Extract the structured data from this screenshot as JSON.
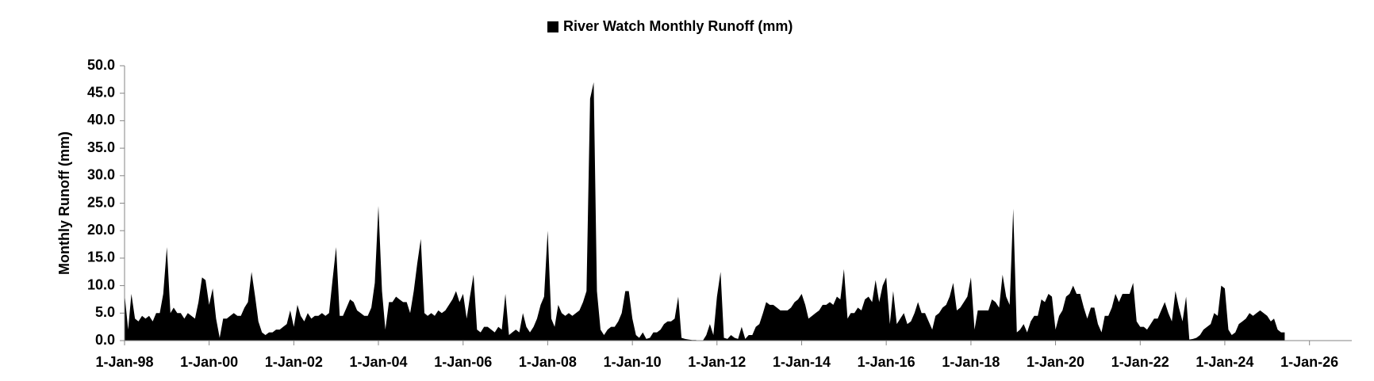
{
  "chart_data": {
    "type": "area",
    "y_label": "Monthly Runoff (mm)",
    "legend": "top",
    "x": [
      "1998-01-01",
      "1998-02-01",
      "1998-03-01",
      "1998-04-01",
      "1998-05-01",
      "1998-06-01",
      "1998-07-01",
      "1998-08-01",
      "1998-09-01",
      "1998-10-01",
      "1998-11-01",
      "1998-12-01",
      "1999-01-01",
      "1999-02-01",
      "1999-03-01",
      "1999-04-01",
      "1999-05-01",
      "1999-06-01",
      "1999-07-01",
      "1999-08-01",
      "1999-09-01",
      "1999-10-01",
      "1999-11-01",
      "1999-12-01",
      "2000-01-01",
      "2000-02-01",
      "2000-03-01",
      "2000-04-01",
      "2000-05-01",
      "2000-06-01",
      "2000-07-01",
      "2000-08-01",
      "2000-09-01",
      "2000-10-01",
      "2000-11-01",
      "2000-12-01",
      "2001-01-01",
      "2001-02-01",
      "2001-03-01",
      "2001-04-01",
      "2001-05-01",
      "2001-06-01",
      "2001-07-01",
      "2001-08-01",
      "2001-09-01",
      "2001-10-01",
      "2001-11-01",
      "2001-12-01",
      "2002-01-01",
      "2002-02-01",
      "2002-03-01",
      "2002-04-01",
      "2002-05-01",
      "2002-06-01",
      "2002-07-01",
      "2002-08-01",
      "2002-09-01",
      "2002-10-01",
      "2002-11-01",
      "2002-12-01",
      "2003-01-01",
      "2003-02-01",
      "2003-03-01",
      "2003-04-01",
      "2003-05-01",
      "2003-06-01",
      "2003-07-01",
      "2003-08-01",
      "2003-09-01",
      "2003-10-01",
      "2003-11-01",
      "2003-12-01",
      "2004-01-01",
      "2004-02-01",
      "2004-03-01",
      "2004-04-01",
      "2004-05-01",
      "2004-06-01",
      "2004-07-01",
      "2004-08-01",
      "2004-09-01",
      "2004-10-01",
      "2004-11-01",
      "2004-12-01",
      "2005-01-01",
      "2005-02-01",
      "2005-03-01",
      "2005-04-01",
      "2005-05-01",
      "2005-06-01",
      "2005-07-01",
      "2005-08-01",
      "2005-09-01",
      "2005-10-01",
      "2005-11-01",
      "2005-12-01",
      "2006-01-01",
      "2006-02-01",
      "2006-03-01",
      "2006-04-01",
      "2006-05-01",
      "2006-06-01",
      "2006-07-01",
      "2006-08-01",
      "2006-09-01",
      "2006-10-01",
      "2006-11-01",
      "2006-12-01",
      "2007-01-01",
      "2007-02-01",
      "2007-03-01",
      "2007-04-01",
      "2007-05-01",
      "2007-06-01",
      "2007-07-01",
      "2007-08-01",
      "2007-09-01",
      "2007-10-01",
      "2007-11-01",
      "2007-12-01",
      "2008-01-01",
      "2008-02-01",
      "2008-03-01",
      "2008-04-01",
      "2008-05-01",
      "2008-06-01",
      "2008-07-01",
      "2008-08-01",
      "2008-09-01",
      "2008-10-01",
      "2008-11-01",
      "2008-12-01",
      "2009-01-01",
      "2009-02-01",
      "2009-03-01",
      "2009-04-01",
      "2009-05-01",
      "2009-06-01",
      "2009-07-01",
      "2009-08-01",
      "2009-09-01",
      "2009-10-01",
      "2009-11-01",
      "2009-12-01",
      "2010-01-01",
      "2010-02-01",
      "2010-03-01",
      "2010-04-01",
      "2010-05-01",
      "2010-06-01",
      "2010-07-01",
      "2010-08-01",
      "2010-09-01",
      "2010-10-01",
      "2010-11-01",
      "2010-12-01",
      "2011-01-01",
      "2011-02-01",
      "2011-03-01",
      "2011-04-01",
      "2011-05-01",
      "2011-06-01",
      "2011-07-01",
      "2011-08-01",
      "2011-09-01",
      "2011-10-01",
      "2011-11-01",
      "2011-12-01",
      "2012-01-01",
      "2012-02-01",
      "2012-03-01",
      "2012-04-01",
      "2012-05-01",
      "2012-06-01",
      "2012-07-01",
      "2012-08-01",
      "2012-09-01",
      "2012-10-01",
      "2012-11-01",
      "2012-12-01",
      "2013-01-01",
      "2013-02-01",
      "2013-03-01",
      "2013-04-01",
      "2013-05-01",
      "2013-06-01",
      "2013-07-01",
      "2013-08-01",
      "2013-09-01",
      "2013-10-01",
      "2013-11-01",
      "2013-12-01",
      "2014-01-01",
      "2014-02-01",
      "2014-03-01",
      "2014-04-01",
      "2014-05-01",
      "2014-06-01",
      "2014-07-01",
      "2014-08-01",
      "2014-09-01",
      "2014-10-01",
      "2014-11-01",
      "2014-12-01",
      "2015-01-01",
      "2015-02-01",
      "2015-03-01",
      "2015-04-01",
      "2015-05-01",
      "2015-06-01",
      "2015-07-01",
      "2015-08-01",
      "2015-09-01",
      "2015-10-01",
      "2015-11-01",
      "2015-12-01",
      "2016-01-01",
      "2016-02-01",
      "2016-03-01",
      "2016-04-01",
      "2016-05-01",
      "2016-06-01",
      "2016-07-01",
      "2016-08-01",
      "2016-09-01",
      "2016-10-01",
      "2016-11-01",
      "2016-12-01",
      "2017-01-01",
      "2017-02-01",
      "2017-03-01",
      "2017-04-01",
      "2017-05-01",
      "2017-06-01",
      "2017-07-01",
      "2017-08-01",
      "2017-09-01",
      "2017-10-01",
      "2017-11-01",
      "2017-12-01",
      "2018-01-01",
      "2018-02-01",
      "2018-03-01",
      "2018-04-01",
      "2018-05-01",
      "2018-06-01",
      "2018-07-01",
      "2018-08-01",
      "2018-09-01",
      "2018-10-01",
      "2018-11-01",
      "2018-12-01",
      "2019-01-01",
      "2019-02-01",
      "2019-03-01",
      "2019-04-01",
      "2019-05-01",
      "2019-06-01",
      "2019-07-01",
      "2019-08-01",
      "2019-09-01",
      "2019-10-01",
      "2019-11-01",
      "2019-12-01",
      "2020-01-01",
      "2020-02-01",
      "2020-03-01",
      "2020-04-01",
      "2020-05-01",
      "2020-06-01",
      "2020-07-01",
      "2020-08-01",
      "2020-09-01",
      "2020-10-01",
      "2020-11-01",
      "2020-12-01",
      "2021-01-01",
      "2021-02-01",
      "2021-03-01",
      "2021-04-01",
      "2021-05-01",
      "2021-06-01",
      "2021-07-01",
      "2021-08-01",
      "2021-09-01",
      "2021-10-01",
      "2021-11-01",
      "2021-12-01",
      "2022-01-01",
      "2022-02-01",
      "2022-03-01",
      "2022-04-01",
      "2022-05-01",
      "2022-06-01",
      "2022-07-01",
      "2022-08-01",
      "2022-09-01",
      "2022-10-01",
      "2022-11-01",
      "2022-12-01",
      "2023-01-01",
      "2023-02-01",
      "2023-03-01",
      "2023-04-01",
      "2023-05-01",
      "2023-06-01",
      "2023-07-01",
      "2023-08-01",
      "2023-09-01",
      "2023-10-01",
      "2023-11-01",
      "2023-12-01",
      "2024-01-01",
      "2024-02-01",
      "2024-03-01",
      "2024-04-01",
      "2024-05-01",
      "2024-06-01",
      "2024-07-01",
      "2024-08-01",
      "2024-09-01",
      "2024-10-01",
      "2024-11-01",
      "2024-12-01",
      "2025-01-01",
      "2025-02-01",
      "2025-03-01",
      "2025-04-01",
      "2025-05-01",
      "2025-06-01"
    ],
    "series": [
      {
        "name": "River Watch Monthly Runoff (mm)",
        "color": "#000000",
        "values": [
          8.5,
          2,
          8.5,
          4,
          3.5,
          4.5,
          4,
          4.5,
          3.5,
          5,
          5,
          8.5,
          17,
          5,
          6,
          5,
          5,
          4,
          5,
          4.5,
          4,
          7,
          11.5,
          11,
          6.5,
          9.5,
          4,
          0.5,
          4,
          4,
          4.5,
          5,
          4.5,
          4.5,
          6,
          7,
          12.5,
          8,
          3.5,
          1.5,
          1,
          1.5,
          1.5,
          2,
          2,
          2.5,
          3,
          5.5,
          2.5,
          6.5,
          4.5,
          3.5,
          5,
          4,
          4.5,
          4.5,
          5,
          4.5,
          5,
          11,
          17,
          4.5,
          4.5,
          6,
          7.5,
          7,
          5.5,
          5,
          4.5,
          4.5,
          6,
          10.5,
          24.5,
          9,
          2,
          7,
          7,
          8,
          7.5,
          7,
          7,
          5,
          9,
          14,
          18.5,
          5,
          4.5,
          5,
          4.5,
          5.5,
          5,
          5.5,
          6.5,
          7.5,
          9,
          7,
          8.5,
          4,
          8,
          12,
          2,
          1.5,
          2.5,
          2.5,
          2,
          1.5,
          2.5,
          2,
          8.5,
          1,
          1.5,
          2,
          1.5,
          5,
          2.5,
          1.5,
          2.5,
          4,
          6.5,
          8,
          20,
          4,
          2.5,
          6.5,
          5,
          4.5,
          5,
          4.5,
          5,
          5.5,
          7,
          9,
          44,
          47,
          9,
          2,
          1,
          2,
          2.5,
          2.5,
          3.5,
          5,
          9,
          9,
          4,
          1,
          0.5,
          1.5,
          0.3,
          0.5,
          1.5,
          1.5,
          2,
          3,
          3.5,
          3.5,
          4,
          8,
          0.5,
          0.3,
          0.2,
          0.1,
          0.1,
          0,
          0,
          1,
          3,
          1,
          8,
          12.5,
          0.5,
          0.3,
          1,
          0.5,
          0.3,
          2.5,
          0.3,
          1,
          1,
          2.5,
          3,
          5,
          7,
          6.5,
          6.5,
          6,
          5.5,
          5.5,
          5.5,
          6,
          7,
          7.5,
          8.5,
          6.5,
          4,
          4.5,
          5,
          5.5,
          6.5,
          6.5,
          7,
          6.5,
          8,
          7.5,
          13,
          4,
          5,
          5,
          6,
          5.5,
          7.5,
          8,
          7,
          11,
          7,
          10,
          11.5,
          3,
          9,
          3,
          4,
          5,
          3,
          3.5,
          5,
          7,
          5,
          5,
          3.5,
          2,
          4.5,
          5,
          6,
          6.5,
          8,
          10.5,
          5.5,
          6,
          7,
          8,
          11.5,
          2,
          5.5,
          5.5,
          5.5,
          5.5,
          7.5,
          7,
          6,
          12,
          8,
          6.5,
          24,
          1.5,
          2,
          3,
          1.5,
          3.5,
          4.5,
          4.5,
          7.5,
          7,
          8.5,
          8,
          2,
          4.5,
          5.5,
          8,
          8.5,
          10,
          8.5,
          8.5,
          6,
          4,
          6,
          6,
          3,
          1.5,
          4.5,
          4.5,
          6,
          8.5,
          7,
          8.5,
          8.5,
          8.5,
          10.5,
          3.5,
          2.5,
          2.5,
          2,
          3,
          4,
          4,
          5.5,
          7,
          5,
          3.5,
          9,
          6,
          3.5,
          8,
          0.2,
          0.3,
          0.5,
          1,
          2,
          2.5,
          3,
          5,
          4.5,
          10,
          9.5,
          2,
          1,
          1.5,
          3,
          3.5,
          4,
          5,
          4.5,
          5,
          5.5,
          5,
          4.5,
          3.5,
          4,
          2,
          1.5,
          1.5
        ]
      }
    ],
    "xlim": [
      "1998-01-01",
      "2027-01-01"
    ],
    "xticks": [
      {
        "value": "1998-01-01",
        "label": "1-Jan-98"
      },
      {
        "value": "2000-01-01",
        "label": "1-Jan-00"
      },
      {
        "value": "2002-01-01",
        "label": "1-Jan-02"
      },
      {
        "value": "2004-01-01",
        "label": "1-Jan-04"
      },
      {
        "value": "2006-01-01",
        "label": "1-Jan-06"
      },
      {
        "value": "2008-01-01",
        "label": "1-Jan-08"
      },
      {
        "value": "2010-01-01",
        "label": "1-Jan-10"
      },
      {
        "value": "2012-01-01",
        "label": "1-Jan-12"
      },
      {
        "value": "2014-01-01",
        "label": "1-Jan-14"
      },
      {
        "value": "2016-01-01",
        "label": "1-Jan-16"
      },
      {
        "value": "2018-01-01",
        "label": "1-Jan-18"
      },
      {
        "value": "2020-01-01",
        "label": "1-Jan-20"
      },
      {
        "value": "2022-01-01",
        "label": "1-Jan-22"
      },
      {
        "value": "2024-01-01",
        "label": "1-Jan-24"
      },
      {
        "value": "2026-01-01",
        "label": "1-Jan-26"
      }
    ],
    "ylim": [
      0,
      50
    ],
    "yticks": [
      {
        "value": 0,
        "label": "0.0"
      },
      {
        "value": 5,
        "label": "5.0"
      },
      {
        "value": 10,
        "label": "10.0"
      },
      {
        "value": 15,
        "label": "15.0"
      },
      {
        "value": 20,
        "label": "20.0"
      },
      {
        "value": 25,
        "label": "25.0"
      },
      {
        "value": 30,
        "label": "30.0"
      },
      {
        "value": 35,
        "label": "35.0"
      },
      {
        "value": 40,
        "label": "40.0"
      },
      {
        "value": 45,
        "label": "45.0"
      },
      {
        "value": 50,
        "label": "50.0"
      }
    ],
    "grid": false
  }
}
